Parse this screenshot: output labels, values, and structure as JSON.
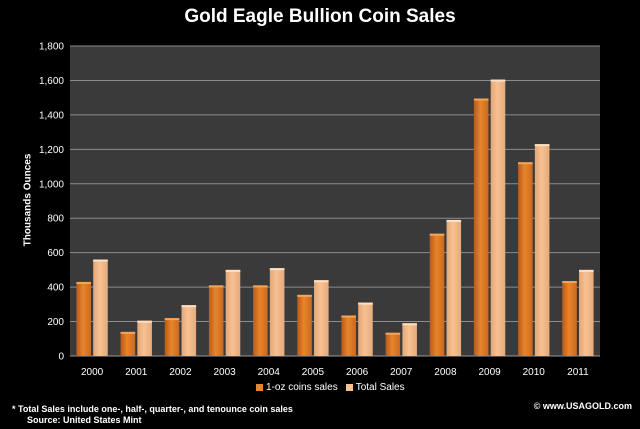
{
  "colors": {
    "series1": "#e8852a",
    "series2": "#f7c193",
    "plot_bg": "#3a3a3a",
    "gridline": "#8c8c8c",
    "text": "#ffffff"
  },
  "chart_data": {
    "type": "bar",
    "title": "Gold Eagle Bullion Coin Sales",
    "xlabel": "",
    "ylabel": "Thousands   Ounces",
    "ylim": [
      0,
      1800
    ],
    "yticks": [
      0,
      200,
      400,
      600,
      800,
      1000,
      1200,
      1400,
      1600,
      1800
    ],
    "ytick_labels": [
      "0",
      "200",
      "400",
      "600",
      "800",
      "1,000",
      "1,200",
      "1,400",
      "1,600",
      "1,800"
    ],
    "grid": true,
    "legend_position": "bottom",
    "categories": [
      "2000",
      "2001",
      "2002",
      "2003",
      "2004",
      "2005",
      "2006",
      "2007",
      "2008",
      "2009",
      "2010",
      "2011"
    ],
    "series": [
      {
        "name": "1-oz coins sales",
        "values": [
          430,
          140,
          220,
          410,
          410,
          355,
          235,
          135,
          710,
          1495,
          1125,
          435
        ]
      },
      {
        "name": "Total Sales",
        "values": [
          560,
          205,
          295,
          500,
          510,
          440,
          310,
          190,
          790,
          1605,
          1230,
          500
        ]
      }
    ]
  },
  "footnote": {
    "line1": "* Total Sales include one-, half-, quarter-, and tenounce coin sales",
    "line2": "Source: United States Mint"
  },
  "copyright": "© www.USAGOLD.com"
}
